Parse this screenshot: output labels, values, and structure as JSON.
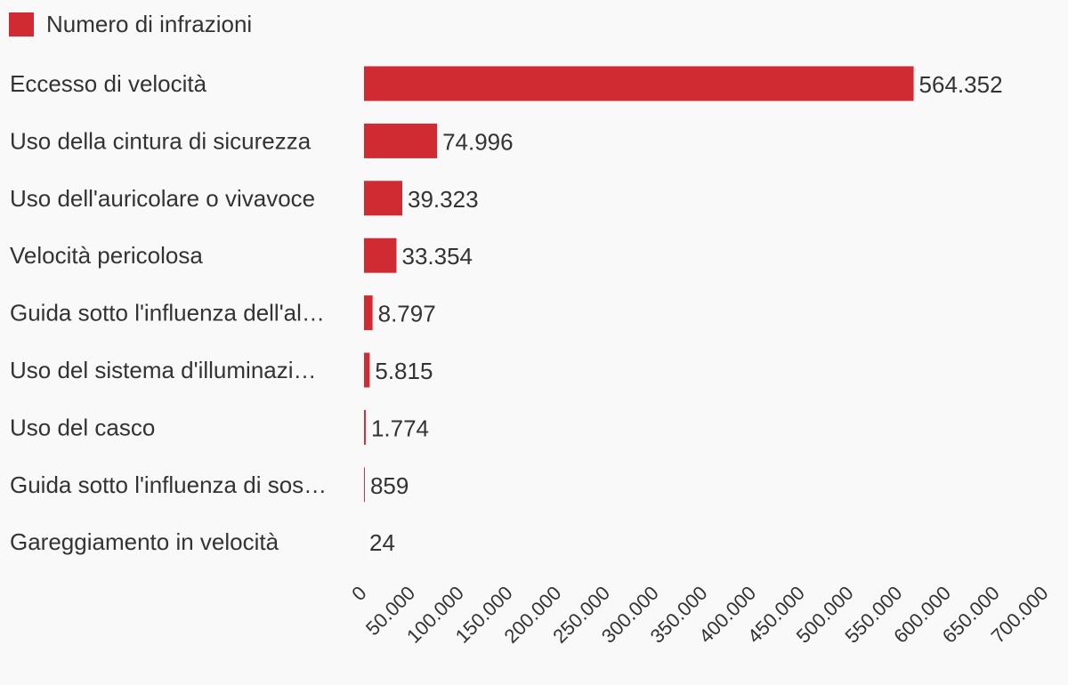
{
  "legend": {
    "label": "Numero di infrazioni",
    "color": "#d02b33"
  },
  "chart_data": {
    "type": "bar",
    "orientation": "horizontal",
    "categories": [
      "Eccesso di velocità",
      "Uso della cintura di sicurezza",
      "Uso dell'auricolare o vivavoce",
      "Velocità pericolosa",
      "Guida sotto l'influenza dell'al…",
      "Uso del sistema d'illuminazi…",
      "Uso del casco",
      "Guida sotto l'influenza di sos…",
      "Gareggiamento in velocità"
    ],
    "series": [
      {
        "name": "Numero di infrazioni",
        "color": "#d02b33",
        "values": [
          564352,
          74996,
          39323,
          33354,
          8797,
          5815,
          1774,
          859,
          24
        ],
        "value_labels": [
          "564.352",
          "74.996",
          "39.323",
          "33.354",
          "8.797",
          "5.815",
          "1.774",
          "859",
          "24"
        ]
      }
    ],
    "xlim": [
      0,
      700000
    ],
    "xticks": [
      0,
      50000,
      100000,
      150000,
      200000,
      250000,
      300000,
      350000,
      400000,
      450000,
      500000,
      550000,
      600000,
      650000,
      700000
    ],
    "xtick_labels": [
      "0",
      "50.000",
      "100.000",
      "150.000",
      "200.000",
      "250.000",
      "300.000",
      "350.000",
      "400.000",
      "450.000",
      "500.000",
      "550.000",
      "600.000",
      "650.000",
      "700.000"
    ],
    "grid": false,
    "legend_position": "top-left"
  }
}
